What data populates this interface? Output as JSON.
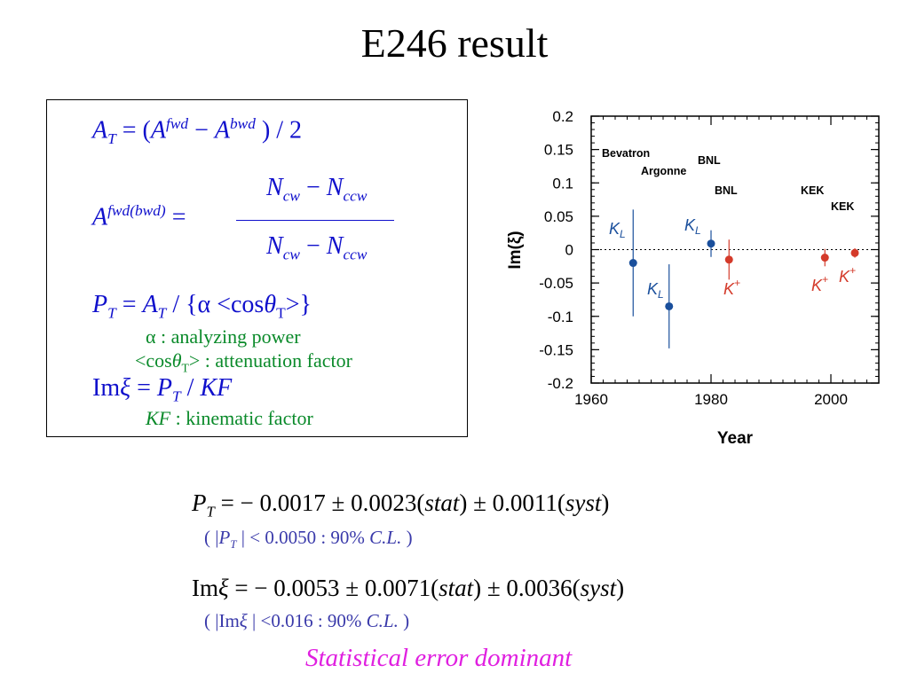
{
  "title": "E246 result",
  "equations": {
    "at_lhs": "A",
    "at_lhs_sub": "T",
    "at_rhs1": " = (",
    "at_a1": "A",
    "at_fwd": "fwd",
    "at_minus": " − ",
    "at_a2": "A",
    "at_bwd": "bwd",
    "at_rhs2": " ) / 2",
    "afwd_lhs": "A",
    "afwd_sup": "fwd(bwd)",
    "afwd_eq": " =",
    "num_n1": "N",
    "num_cw": "cw",
    "num_minus": " − ",
    "num_n2": "N",
    "num_ccw": "ccw",
    "den_n1": "N",
    "den_cw": "cw",
    "den_minus": " − ",
    "den_n2": "N",
    "den_ccw": "ccw",
    "pt_p": "P",
    "pt_sub": "T",
    "pt_eq": " = ",
    "pt_a": "A",
    "pt_a_sub": "T",
    "pt_rest1": " / {α <cos",
    "pt_theta": "θ",
    "pt_theta_sub": "T",
    "pt_rest2": ">}",
    "alpha_note": "α : analyzing power",
    "cos_note_1": "<cos",
    "cos_note_theta": "θ",
    "cos_note_sub": "T",
    "cos_note_2": "> : attenuation factor",
    "im_im": "Im",
    "im_xi": "ξ",
    "im_eq": " = ",
    "im_p": "P",
    "im_p_sub": "T",
    "im_slash": " / ",
    "im_kf": "KF",
    "kf_note_kf": "KF",
    "kf_note_rest": " :  kinematic factor"
  },
  "results": {
    "pt_p": "P",
    "pt_sub": "T",
    "pt_value": " = − 0.0017 ± 0.0023(",
    "pt_stat": "stat",
    "pt_mid": ") ± 0.0011(",
    "pt_syst": "syst",
    "pt_end": ")",
    "pt_cl_1": "( |",
    "pt_cl_p": "P",
    "pt_cl_sub": "T",
    "pt_cl_2": " | < 0.0050 : 90% ",
    "pt_cl_cl": "C.L.",
    "pt_cl_3": " )",
    "im_im": "Im",
    "im_xi": "ξ",
    "im_value": " = − 0.0053 ± 0.0071(",
    "im_stat": "stat",
    "im_mid": ") ± 0.0036(",
    "im_syst": "syst",
    "im_end": ")",
    "im_cl_1": "( |Im",
    "im_cl_xi": "ξ",
    "im_cl_2": " | <0.016 : 90% ",
    "im_cl_cl": "C.L.",
    "im_cl_3": " )"
  },
  "conclusion": "Statistical error dominant",
  "chart_data": {
    "type": "scatter",
    "xlabel": "Year",
    "ylabel": "Im(ξ)",
    "xlim": [
      1960,
      2008
    ],
    "ylim": [
      -0.2,
      0.2
    ],
    "xticks": [
      "1960",
      "1980",
      "2000"
    ],
    "yticks": [
      "0.2",
      "0.15",
      "0.1",
      "0.05",
      "0",
      "-0.05",
      "-0.1",
      "-0.15",
      "-0.2"
    ],
    "zero_line": "dotted",
    "points": [
      {
        "x": 1967,
        "y": -0.02,
        "yerr": 0.08,
        "series": "KL",
        "color": "#1a4f9c"
      },
      {
        "x": 1973,
        "y": -0.085,
        "yerr": 0.063,
        "series": "KL",
        "color": "#1a4f9c"
      },
      {
        "x": 1980,
        "y": 0.009,
        "yerr": 0.02,
        "series": "KL",
        "color": "#1a4f9c"
      },
      {
        "x": 1983,
        "y": -0.015,
        "yerr": 0.03,
        "series": "K+",
        "color": "#d43a2a"
      },
      {
        "x": 1999,
        "y": -0.012,
        "yerr": 0.013,
        "series": "K+",
        "color": "#d43a2a"
      },
      {
        "x": 2004,
        "y": -0.005,
        "yerr": 0.007,
        "series": "K+",
        "color": "#d43a2a"
      }
    ],
    "experiment_labels": [
      "Bevatron",
      "Argonne",
      "BNL",
      "BNL",
      "KEK",
      "KEK"
    ],
    "particle_labels": [
      {
        "base": "K",
        "mod": "L",
        "kind": "sub",
        "color": "#1a4f9c"
      },
      {
        "base": "K",
        "mod": "L",
        "kind": "sub",
        "color": "#1a4f9c"
      },
      {
        "base": "K",
        "mod": "L",
        "kind": "sub",
        "color": "#1a4f9c"
      },
      {
        "base": "K",
        "mod": "+",
        "kind": "sup",
        "color": "#d43a2a"
      },
      {
        "base": "K",
        "mod": "+",
        "kind": "sup",
        "color": "#d43a2a"
      },
      {
        "base": "K",
        "mod": "+",
        "kind": "sup",
        "color": "#d43a2a"
      }
    ]
  }
}
